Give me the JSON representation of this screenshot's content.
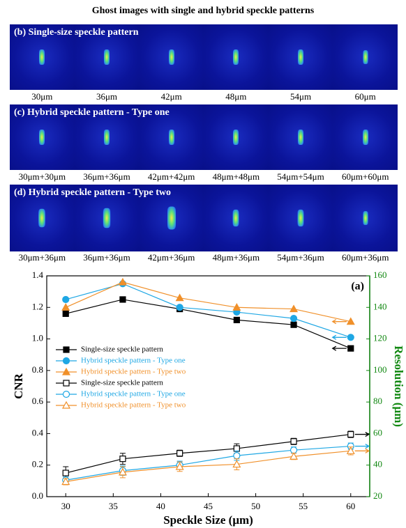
{
  "figure": {
    "title": "Ghost images with single and hybrid speckle patterns",
    "panels": [
      {
        "label": "(b) Single-size speckle pattern",
        "captions": [
          "30μm",
          "36μm",
          "42μm",
          "48μm",
          "54μm",
          "60μm"
        ]
      },
      {
        "label": "(c) Hybrid speckle pattern - Type one",
        "captions": [
          "30μm+30μm",
          "36μm+36μm",
          "42μm+42μm",
          "48μm+48μm",
          "54μm+54μm",
          "60μm+60μm"
        ]
      },
      {
        "label": "(d) Hybrid speckle pattern - Type two",
        "captions": [
          "30μm+36μm",
          "36μm+36μm",
          "42μm+36μm",
          "48μm+36μm",
          "54μm+36μm",
          "60μm+36μm"
        ]
      }
    ]
  },
  "chart_data": {
    "type": "line",
    "annotation": "(a)",
    "xlabel": "Speckle Size (μm)",
    "ylabel": "CNR",
    "y2label": "Resolution (μm)",
    "x": [
      30,
      36,
      42,
      48,
      54,
      60
    ],
    "xlim": [
      28,
      62
    ],
    "xticks": [
      30,
      35,
      40,
      45,
      50,
      55,
      60
    ],
    "ylim": [
      0,
      1.4
    ],
    "yticks": [
      {
        "value": 0,
        "label": "0.0"
      },
      0.2,
      0.4,
      0.6,
      0.8,
      {
        "value": 1,
        "label": "1.0"
      },
      1.2,
      1.4
    ],
    "y2lim": [
      20,
      160
    ],
    "y2ticks": [
      20,
      40,
      60,
      80,
      100,
      120,
      140,
      160
    ],
    "series": [
      {
        "name": "Single-size speckle pattern",
        "color": "#000000",
        "marker": "square",
        "filled": true,
        "values": [
          1.16,
          1.25,
          1.19,
          1.12,
          1.09,
          0.94
        ]
      },
      {
        "name": "Hybrid speckle pattern - Type one",
        "color": "#1ea7e4",
        "marker": "circle",
        "filled": true,
        "values": [
          1.25,
          1.35,
          1.2,
          1.17,
          1.13,
          1.01
        ]
      },
      {
        "name": "Hybrid speckle pattern - Type two",
        "color": "#f0902a",
        "marker": "triangle",
        "filled": true,
        "values": [
          1.2,
          1.36,
          1.26,
          1.2,
          1.19,
          1.11
        ]
      },
      {
        "name": "Single-size speckle pattern",
        "color": "#000000",
        "marker": "square",
        "filled": false,
        "axis": "y2",
        "values": [
          35,
          44,
          47.5,
          50.5,
          55,
          59.5
        ],
        "errors": [
          4,
          3.5,
          2,
          3,
          2,
          2
        ]
      },
      {
        "name": "Hybrid speckle pattern - Type one",
        "color": "#1ea7e4",
        "marker": "circle",
        "filled": false,
        "axis": "y2",
        "values": [
          30.5,
          36.5,
          40,
          46,
          49.5,
          52
        ],
        "errors": [
          2,
          3,
          2.5,
          3,
          2,
          2
        ]
      },
      {
        "name": "Hybrid speckle pattern - Type two",
        "color": "#f0902a",
        "marker": "triangle",
        "filled": false,
        "axis": "y2",
        "values": [
          29.5,
          35.5,
          39,
          40.5,
          45.5,
          49
        ],
        "errors": [
          2,
          3.5,
          3,
          3.5,
          2,
          2.5
        ]
      }
    ]
  }
}
